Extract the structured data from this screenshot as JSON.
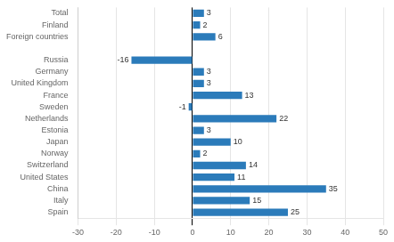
{
  "chart_data": {
    "type": "bar",
    "orientation": "horizontal",
    "categories": [
      "Spain",
      "Italy",
      "China",
      "United States",
      "Switzerland",
      "Norway",
      "Japan",
      "Estonia",
      "Netherlands",
      "Sweden",
      "France",
      "United Kingdom",
      "Germany",
      "Russia",
      null,
      "Foreign countries",
      "Finland",
      "Total"
    ],
    "values": [
      25,
      15,
      35,
      11,
      14,
      2,
      10,
      3,
      22,
      -1,
      13,
      3,
      3,
      -16,
      null,
      6,
      2,
      3
    ],
    "color": "#2b7bba",
    "xlim": [
      -30,
      50
    ],
    "xticks": [
      -30,
      -20,
      -10,
      0,
      10,
      20,
      30,
      40,
      50
    ],
    "grid": true,
    "data_labels": true
  }
}
